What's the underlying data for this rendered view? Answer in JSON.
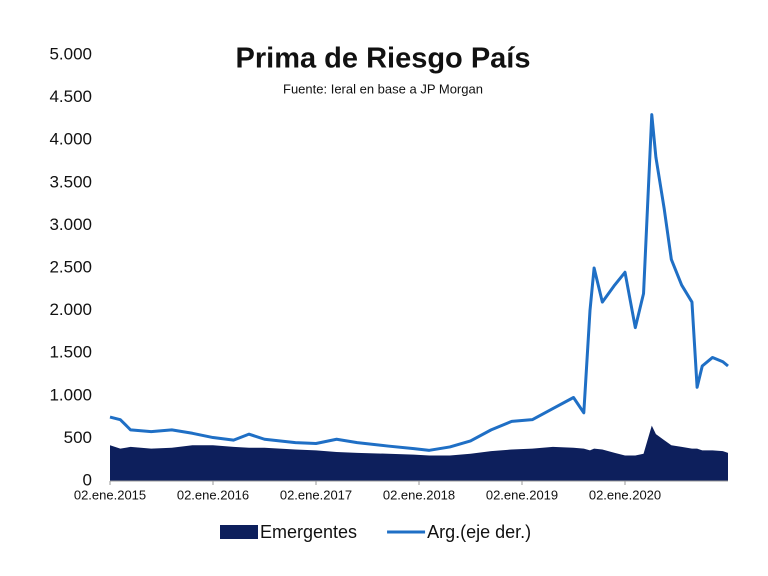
{
  "chart_data": {
    "type": "line",
    "title": "Prima de Riesgo País",
    "subtitle": "Fuente: Ieral en base a JP Morgan",
    "x": [
      2015.0,
      2015.1,
      2015.2,
      2015.4,
      2015.6,
      2015.8,
      2016.0,
      2016.2,
      2016.35,
      2016.5,
      2016.8,
      2017.0,
      2017.2,
      2017.4,
      2017.7,
      2017.95,
      2018.1,
      2018.3,
      2018.5,
      2018.7,
      2018.9,
      2019.1,
      2019.3,
      2019.5,
      2019.6,
      2019.66,
      2019.7,
      2019.78,
      2019.9,
      2020.0,
      2020.1,
      2020.18,
      2020.26,
      2020.3,
      2020.38,
      2020.45,
      2020.55,
      2020.65,
      2020.7,
      2020.75,
      2020.85,
      2020.95,
      2021.0
    ],
    "series": [
      {
        "name": "Emergentes",
        "kind": "area",
        "color": "#0d1f5c",
        "values": [
          420,
          380,
          400,
          380,
          390,
          420,
          420,
          400,
          390,
          390,
          370,
          360,
          340,
          330,
          320,
          310,
          300,
          300,
          320,
          350,
          370,
          380,
          400,
          390,
          380,
          360,
          380,
          370,
          330,
          300,
          300,
          320,
          650,
          550,
          480,
          420,
          400,
          380,
          380,
          360,
          360,
          350,
          330
        ]
      },
      {
        "name": "Arg.(eje der.)",
        "kind": "line",
        "color": "#1f6fc5",
        "values": [
          750,
          720,
          600,
          580,
          600,
          560,
          510,
          480,
          550,
          490,
          450,
          440,
          490,
          450,
          410,
          380,
          360,
          400,
          470,
          600,
          700,
          720,
          850,
          980,
          800,
          2000,
          2500,
          2100,
          2300,
          2450,
          1800,
          2200,
          4300,
          3800,
          3200,
          2600,
          2300,
          2100,
          1100,
          1350,
          1450,
          1400,
          1350
        ]
      }
    ],
    "xlim": [
      2015,
      2021
    ],
    "xticks": [
      {
        "value": 2015,
        "label": "02.ene.2015"
      },
      {
        "value": 2016,
        "label": "02.ene.2016"
      },
      {
        "value": 2017,
        "label": "02.ene.2017"
      },
      {
        "value": 2018,
        "label": "02.ene.2018"
      },
      {
        "value": 2019,
        "label": "02.ene.2019"
      },
      {
        "value": 2020,
        "label": "02.ene.2020"
      }
    ],
    "ylim": [
      0,
      5000
    ],
    "yticks": [
      0,
      500,
      {
        "value": 1000,
        "label": "1.000"
      },
      {
        "value": 1500,
        "label": "1.500"
      },
      {
        "value": 2000,
        "label": "2.000"
      },
      {
        "value": 2500,
        "label": "2.500"
      },
      {
        "value": 3000,
        "label": "3.000"
      },
      {
        "value": 3500,
        "label": "3.500"
      },
      {
        "value": 4000,
        "label": "4.000"
      },
      {
        "value": 4500,
        "label": "4.500"
      },
      {
        "value": 5000,
        "label": "5.000"
      }
    ],
    "grid": false
  }
}
